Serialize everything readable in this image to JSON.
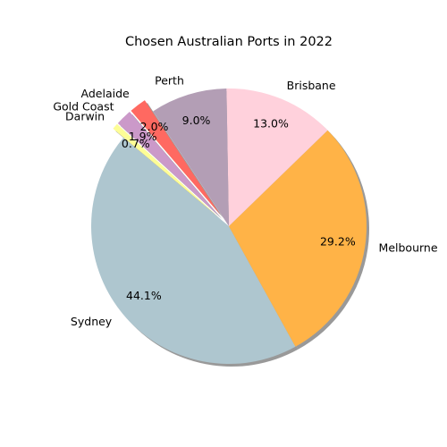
{
  "chart_data": {
    "type": "pie",
    "title": "Chosen Australian Ports in 2022",
    "labels": [
      "Sydney",
      "Melbourne",
      "Brisbane",
      "Perth",
      "Adelaide",
      "Gold Coast",
      "Darwin"
    ],
    "values": [
      44.1,
      29.2,
      13.0,
      9.0,
      2.0,
      1.9,
      0.7
    ],
    "value_labels": [
      "44.1%",
      "29.2%",
      "13.0%",
      "9.0%",
      "2.0%",
      "1.9%",
      "0.7%"
    ],
    "colors": [
      "#aec6cf",
      "#ffb347",
      "#ffd1dc",
      "#b39eb5",
      "#ff6961",
      "#cb99c9",
      "#fdfd96"
    ],
    "exploded": [
      "Adelaide",
      "Gold Coast",
      "Darwin"
    ],
    "shadow": true,
    "start_angle_deg": 140,
    "direction": "counterclockwise"
  }
}
